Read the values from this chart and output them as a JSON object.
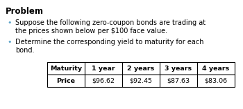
{
  "title": "Problem",
  "bullet1_line1": "Suppose the following zero-coupon bonds are trading at",
  "bullet1_line2": "the prices shown below per $100 face value.",
  "bullet2_line1": "Determine the corresponding yield to maturity for each",
  "bullet2_line2": "bond.",
  "table_headers": [
    "Maturity",
    "1 year",
    "2 years",
    "3 years",
    "4 years"
  ],
  "table_row_label": "Price",
  "table_values": [
    "$96.62",
    "$92.45",
    "$87.63",
    "$83.06"
  ],
  "bullet_color": "#5ba3c9",
  "background_color": "#ffffff",
  "text_color": "#000000"
}
